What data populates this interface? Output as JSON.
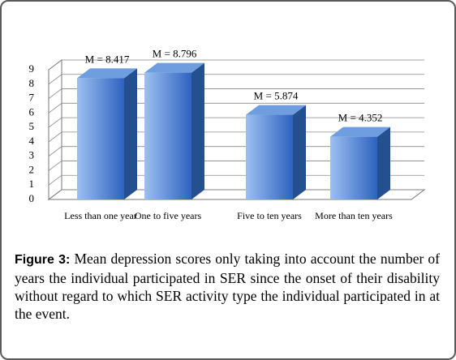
{
  "chart_data": {
    "type": "bar",
    "categories": [
      "Less than one year",
      "One to five years",
      "Five to ten years",
      "More than ten years"
    ],
    "values": [
      8.417,
      8.796,
      5.874,
      4.352
    ],
    "value_labels": [
      "M = 8.417",
      "M = 8.796",
      "M = 5.874",
      "M = 4.352"
    ],
    "color": "#3a6fc9",
    "ylim": [
      0,
      9
    ],
    "yticks": [
      0,
      1,
      2,
      3,
      4,
      5,
      6,
      7,
      8,
      9
    ],
    "grid": true
  },
  "caption": {
    "label": "Figure 3:",
    "text": "Mean depression scores only taking into account the number of years the individual participated in SER since the onset of their disability without regard to which SER activity type the individual participated in at the event."
  }
}
